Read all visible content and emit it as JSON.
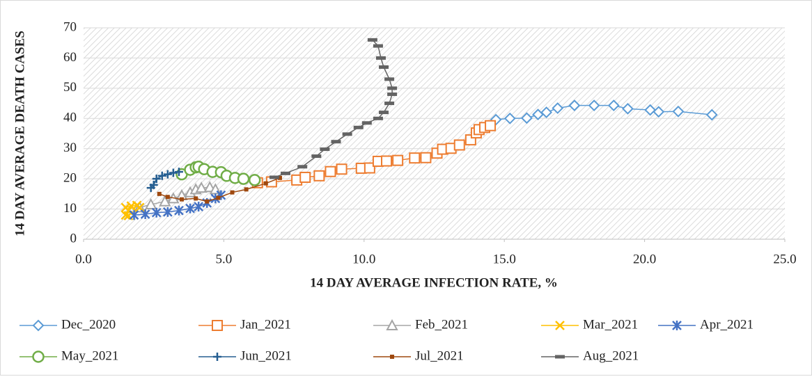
{
  "chart_data": {
    "type": "scatter-line",
    "x_label": "14 DAY AVERAGE INFECTION RATE, %",
    "y_label": "14 DAY AVERAGE DEATH CASES",
    "xlim": [
      0,
      25
    ],
    "ylim": [
      0,
      70
    ],
    "xticks": [
      {
        "value": 0,
        "label": "0.0"
      },
      {
        "value": 5,
        "label": "5.0"
      },
      {
        "value": 10,
        "label": "10.0"
      },
      {
        "value": 15,
        "label": "15.0"
      },
      {
        "value": 20,
        "label": "20.0"
      },
      {
        "value": 25,
        "label": "25.0"
      }
    ],
    "yticks": [
      0,
      10,
      20,
      30,
      40,
      50,
      60,
      70
    ],
    "grid": true,
    "legend": "bottom",
    "series": [
      {
        "name": "Dec_2020",
        "color": "#5b9bd5",
        "marker": "diamond",
        "x": [
          14.7,
          15.2,
          15.8,
          16.2,
          16.5,
          16.9,
          17.5,
          18.2,
          18.9,
          19.4,
          20.2,
          20.5,
          21.2,
          22.4
        ],
        "values": [
          39.6,
          40,
          40.1,
          41.3,
          42,
          43.4,
          44.3,
          44.3,
          44.3,
          43.2,
          42.8,
          42.2,
          42.3,
          41.2
        ]
      },
      {
        "name": "Jan_2021",
        "color": "#ed7d31",
        "marker": "square",
        "x": [
          6.2,
          6.7,
          7.6,
          7.9,
          8.4,
          8.8,
          9.2,
          9.9,
          10.2,
          10.5,
          10.8,
          11.2,
          11.8,
          12.2,
          12.6,
          12.8,
          13.1,
          13.4,
          13.8,
          14.0,
          14.1,
          14.3,
          14.5
        ],
        "values": [
          18.7,
          19,
          19.6,
          20.5,
          21,
          22.4,
          23.2,
          23.5,
          23.6,
          25.8,
          25.9,
          26.1,
          26.9,
          27,
          28.5,
          29.8,
          30.1,
          31.2,
          32.9,
          35.2,
          36.3,
          37,
          37.6
        ]
      },
      {
        "name": "Feb_2021",
        "color": "#a5a5a5",
        "marker": "triangle",
        "x": [
          2.0,
          2.4,
          2.9,
          3.2,
          3.5,
          3.8,
          4.0,
          4.2,
          4.5,
          4.7
        ],
        "values": [
          10.5,
          11.5,
          12.5,
          13.5,
          14.5,
          15.5,
          16.5,
          17,
          17.2,
          16.5
        ]
      },
      {
        "name": "Mar_2021",
        "color": "#ffc000",
        "marker": "x",
        "x": [
          1.6,
          1.5,
          1.6,
          1.5,
          1.7,
          1.9,
          2.0
        ],
        "values": [
          7.8,
          8,
          9.5,
          10.5,
          11,
          11.2,
          10.5
        ]
      },
      {
        "name": "Apr_2021",
        "color": "#4472c4",
        "marker": "star",
        "x": [
          1.8,
          2.2,
          2.6,
          3.0,
          3.4,
          3.8,
          4.1,
          4.4,
          4.7,
          4.9
        ],
        "values": [
          8,
          8.3,
          8.8,
          9,
          9.5,
          10.2,
          10.8,
          12,
          13.5,
          14.6
        ]
      },
      {
        "name": "May_2021",
        "color": "#70ad47",
        "marker": "circle",
        "x": [
          3.5,
          3.8,
          4.0,
          4.1,
          4.3,
          4.6,
          4.9,
          5.1,
          5.4,
          5.7,
          6.1
        ],
        "values": [
          21.5,
          23,
          23.8,
          24,
          23.2,
          22.3,
          22.2,
          21,
          20.3,
          20,
          19.6
        ]
      },
      {
        "name": "Jun_2021",
        "color": "#255e91",
        "marker": "plus",
        "x": [
          2.4,
          2.5,
          2.6,
          2.8,
          3.0,
          3.2,
          3.4
        ],
        "values": [
          17,
          18,
          20,
          21,
          21.5,
          22,
          22.3
        ]
      },
      {
        "name": "Jul_2021",
        "color": "#9e480e",
        "marker": "dot",
        "x": [
          2.7,
          3.0,
          3.5,
          4.0,
          4.4,
          4.8,
          5.3,
          5.8,
          6.5,
          7.0
        ],
        "values": [
          15,
          14,
          13.2,
          13.5,
          12.5,
          13.7,
          15.5,
          16.5,
          18.5,
          20.3
        ]
      },
      {
        "name": "Aug_2021",
        "color": "#636363",
        "marker": "dash",
        "x": [
          6.8,
          7.2,
          7.8,
          8.3,
          8.6,
          9.0,
          9.4,
          9.8,
          10.1,
          10.5,
          10.7,
          10.9,
          11.0,
          11.0,
          10.9,
          10.7,
          10.6,
          10.5,
          10.3
        ],
        "values": [
          20.5,
          21.8,
          24,
          27.5,
          29.8,
          32.3,
          34.8,
          37,
          38.5,
          40,
          42,
          45,
          48,
          50,
          53,
          57,
          60,
          64,
          66
        ]
      }
    ]
  }
}
